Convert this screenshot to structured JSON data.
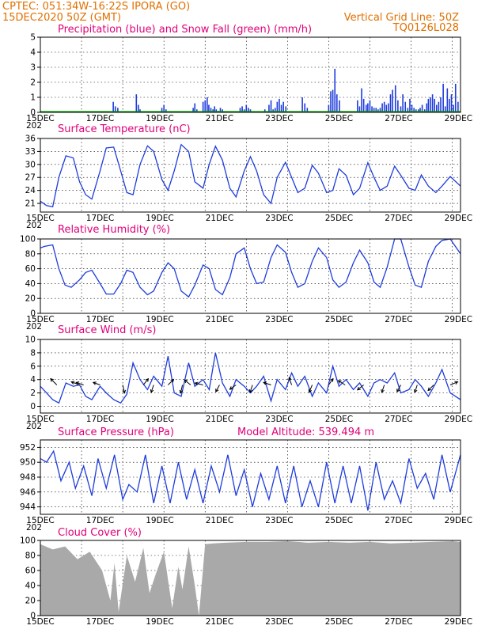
{
  "header": {
    "line1": "CPTEC:  051:34W-16:22S  IPORA (GO)",
    "line2": "15DEC2020 50Z (GMT)",
    "grid_note": "Vertical Grid Line: 50Z",
    "model_code": "TQ0126L028"
  },
  "colors": {
    "header": "#e07000",
    "titles": "#e0007a",
    "series": "#1e3cdc",
    "snow": "#00a000",
    "cloud": "#a9a9a9"
  },
  "chart_data": [
    {
      "id": "precip",
      "type": "bar",
      "title": "Precipitation (blue) and Snow Fall (green) (mm/h)",
      "ylim": [
        0,
        5
      ],
      "yticks": [
        "0",
        "1",
        "2",
        "3",
        "4",
        "5"
      ],
      "xticks": [
        "15DEC",
        "17DEC",
        "19DEC",
        "21DEC",
        "23DEC",
        "25DEC",
        "27DEC",
        "29DEC"
      ],
      "x_stub": "202",
      "series": [
        {
          "name": "Precipitation",
          "x": [
            1.77,
            1.82,
            1.88,
            2.33,
            2.38,
            2.42,
            2.95,
            3.0,
            3.05,
            3.71,
            3.75,
            3.8,
            3.95,
            4.0,
            4.05,
            4.09,
            4.14,
            4.19,
            4.23,
            4.27,
            4.32,
            4.37,
            4.42,
            4.85,
            4.9,
            4.95,
            5.0,
            5.05,
            5.1,
            5.45,
            5.55,
            5.6,
            5.65,
            5.7,
            5.75,
            5.8,
            5.85,
            5.9,
            5.96,
            6.36,
            6.42,
            6.48,
            7.0,
            7.05,
            7.1,
            7.15,
            7.2,
            7.26,
            7.7,
            7.75,
            7.8,
            7.85,
            7.91,
            7.95,
            8.0,
            8.05,
            8.1,
            8.15,
            8.2,
            8.25,
            8.3,
            8.35,
            8.4,
            8.45,
            8.5,
            8.55,
            8.62,
            8.68,
            8.75,
            8.8,
            8.86,
            8.92,
            8.97,
            9.02,
            9.07,
            9.12,
            9.18,
            9.22,
            9.27,
            9.33,
            9.38,
            9.42,
            9.47,
            9.52,
            9.57,
            9.62,
            9.67,
            9.72,
            9.78,
            9.83,
            9.88,
            9.93,
            9.98,
            10.03,
            10.08,
            10.14
          ],
          "values": [
            0.7,
            0.4,
            0.3,
            1.2,
            0.5,
            0.2,
            0.3,
            0.5,
            0.2,
            0.3,
            0.6,
            0.2,
            0.7,
            0.8,
            1.0,
            0.5,
            0.3,
            0.2,
            0.4,
            0.2,
            0.1,
            0.3,
            0.2,
            0.3,
            0.4,
            0.2,
            0.5,
            0.3,
            0.2,
            0.2,
            0.5,
            0.8,
            0.2,
            0.3,
            0.7,
            0.9,
            0.5,
            0.7,
            0.4,
            1.0,
            0.6,
            0.3,
            0.5,
            1.4,
            1.5,
            2.9,
            1.2,
            0.8,
            0.8,
            0.4,
            1.6,
            0.9,
            0.5,
            0.6,
            0.8,
            0.4,
            0.3,
            0.3,
            0.2,
            0.3,
            0.6,
            0.7,
            0.5,
            0.6,
            1.2,
            1.5,
            1.8,
            0.8,
            0.4,
            1.2,
            0.7,
            0.3,
            0.9,
            0.5,
            0.3,
            0.2,
            0.2,
            0.3,
            0.5,
            0.2,
            0.6,
            0.9,
            1.0,
            1.2,
            0.9,
            0.5,
            0.7,
            1.0,
            1.9,
            0.4,
            1.6,
            0.9,
            1.2,
            0.5,
            1.9,
            0.7
          ]
        },
        {
          "name": "Snow Fall",
          "x": [
            0.0,
            10.2
          ],
          "values": [
            0.0,
            0.0
          ]
        }
      ]
    },
    {
      "id": "temp",
      "type": "line",
      "title": "Surface Temperature (nC)",
      "ylim": [
        19,
        36
      ],
      "yticks": [
        "21",
        "24",
        "27",
        "30",
        "33",
        "36"
      ],
      "xticks": [
        "15DEC",
        "17DEC",
        "19DEC",
        "21DEC",
        "23DEC",
        "25DEC",
        "27DEC",
        "29DEC"
      ],
      "x_stub": "202",
      "series": [
        {
          "name": "",
          "x": [
            0.0,
            0.15,
            0.3,
            0.45,
            0.62,
            0.8,
            0.95,
            1.1,
            1.25,
            1.45,
            1.6,
            1.78,
            1.95,
            2.1,
            2.25,
            2.42,
            2.6,
            2.75,
            2.95,
            3.1,
            3.25,
            3.42,
            3.6,
            3.75,
            3.95,
            4.1,
            4.25,
            4.42,
            4.6,
            4.75,
            4.95,
            5.1,
            5.25,
            5.42,
            5.6,
            5.75,
            5.95,
            6.1,
            6.25,
            6.42,
            6.6,
            6.75,
            6.95,
            7.1,
            7.25,
            7.42,
            7.6,
            7.75,
            7.95,
            8.1,
            8.25,
            8.42,
            8.6,
            8.75,
            8.95,
            9.1,
            9.25,
            9.42,
            9.6,
            9.75,
            9.95,
            10.2
          ],
          "values": [
            21.5,
            20.5,
            20.2,
            27.0,
            32.0,
            31.5,
            26.0,
            23.0,
            22.0,
            28.5,
            33.8,
            34.0,
            28.5,
            23.5,
            23.0,
            30.0,
            34.3,
            33.0,
            26.5,
            24.0,
            28.5,
            34.6,
            33.0,
            26.0,
            24.5,
            30.0,
            34.2,
            31.0,
            24.5,
            22.5,
            28.5,
            31.8,
            28.5,
            23.0,
            21.0,
            27.0,
            30.5,
            27.0,
            23.5,
            24.5,
            29.8,
            28.0,
            23.5,
            24.0,
            29.0,
            27.5,
            23.0,
            24.5,
            30.4,
            27.0,
            24.0,
            25.0,
            29.6,
            27.5,
            24.5,
            24.0,
            27.6,
            25.0,
            23.5,
            25.0,
            27.2,
            25.0
          ]
        }
      ]
    },
    {
      "id": "rh",
      "type": "line",
      "title": "Relative Humidity (%)",
      "ylim": [
        0,
        100
      ],
      "yticks": [
        "0",
        "20",
        "40",
        "60",
        "80",
        "100"
      ],
      "xticks": [
        "15DEC",
        "17DEC",
        "19DEC",
        "21DEC",
        "23DEC",
        "25DEC",
        "27DEC",
        "29DEC"
      ],
      "x_stub": "202",
      "series": [
        {
          "name": "",
          "x": [
            0.0,
            0.1,
            0.3,
            0.45,
            0.6,
            0.75,
            0.95,
            1.1,
            1.25,
            1.45,
            1.6,
            1.78,
            1.95,
            2.1,
            2.25,
            2.42,
            2.6,
            2.75,
            2.95,
            3.1,
            3.25,
            3.42,
            3.6,
            3.75,
            3.95,
            4.1,
            4.25,
            4.42,
            4.6,
            4.75,
            4.95,
            5.1,
            5.25,
            5.42,
            5.6,
            5.75,
            5.95,
            6.1,
            6.25,
            6.42,
            6.6,
            6.75,
            6.95,
            7.1,
            7.25,
            7.42,
            7.6,
            7.75,
            7.95,
            8.1,
            8.25,
            8.42,
            8.6,
            8.75,
            8.95,
            9.1,
            9.25,
            9.42,
            9.6,
            9.75,
            9.95,
            10.2
          ],
          "values": [
            88.0,
            90.0,
            92.0,
            60.0,
            38.0,
            35.0,
            45.0,
            55.0,
            58.0,
            40.0,
            26.0,
            26.0,
            40.0,
            58.0,
            55.0,
            35.0,
            25.0,
            30.0,
            55.0,
            68.0,
            60.0,
            30.0,
            22.0,
            38.0,
            65.0,
            60.0,
            32.0,
            25.0,
            48.0,
            80.0,
            88.0,
            60.0,
            40.0,
            42.0,
            75.0,
            92.0,
            82.0,
            55.0,
            35.0,
            40.0,
            70.0,
            88.0,
            75.0,
            45.0,
            35.0,
            42.0,
            68.0,
            85.0,
            68.0,
            42.0,
            35.0,
            62.0,
            100.0,
            100.0,
            62.0,
            38.0,
            35.0,
            70.0,
            90.0,
            98.0,
            100.0,
            80.0
          ]
        }
      ]
    },
    {
      "id": "wind",
      "type": "line",
      "title": "Surface Wind (m/s)",
      "ylim": [
        -1,
        10
      ],
      "yticks": [
        "0",
        "2",
        "4",
        "6",
        "8",
        "10"
      ],
      "xticks": [
        "15DEC",
        "17DEC",
        "19DEC",
        "21DEC",
        "23DEC",
        "25DEC",
        "27DEC",
        "29DEC"
      ],
      "x_stub": "202",
      "series": [
        {
          "name": "",
          "x": [
            0.0,
            0.15,
            0.3,
            0.45,
            0.62,
            0.8,
            0.95,
            1.1,
            1.25,
            1.45,
            1.6,
            1.78,
            1.95,
            2.1,
            2.25,
            2.42,
            2.6,
            2.75,
            2.95,
            3.1,
            3.25,
            3.42,
            3.6,
            3.75,
            3.95,
            4.1,
            4.25,
            4.42,
            4.6,
            4.75,
            4.95,
            5.1,
            5.25,
            5.42,
            5.6,
            5.75,
            5.95,
            6.1,
            6.25,
            6.42,
            6.6,
            6.75,
            6.95,
            7.1,
            7.25,
            7.42,
            7.6,
            7.75,
            7.95,
            8.1,
            8.25,
            8.42,
            8.6,
            8.75,
            8.95,
            9.1,
            9.25,
            9.42,
            9.6,
            9.75,
            9.95,
            10.2
          ],
          "values": [
            3.0,
            2.0,
            1.0,
            0.5,
            3.5,
            3.0,
            3.2,
            1.5,
            1.0,
            3.0,
            2.0,
            1.0,
            0.5,
            1.8,
            6.5,
            4.0,
            2.5,
            4.5,
            3.0,
            7.5,
            2.0,
            1.5,
            6.5,
            3.0,
            4.0,
            2.5,
            8.0,
            3.5,
            1.5,
            4.0,
            3.0,
            2.0,
            3.0,
            4.5,
            0.8,
            4.0,
            2.5,
            5.0,
            3.0,
            4.5,
            1.5,
            3.5,
            2.0,
            6.0,
            3.0,
            4.0,
            2.5,
            3.5,
            1.5,
            3.5,
            4.0,
            3.5,
            5.0,
            2.0,
            2.5,
            4.0,
            3.0,
            1.5,
            3.5,
            5.5,
            2.0,
            1.0
          ]
        }
      ],
      "arrows": [
        {
          "x": 0.4,
          "u": -1.0,
          "v": 1.0
        },
        {
          "x": 0.95,
          "u": -1.3,
          "v": 0.5
        },
        {
          "x": 1.05,
          "u": -1.2,
          "v": 0.4
        },
        {
          "x": 1.45,
          "u": -1.1,
          "v": 0.4
        },
        {
          "x": 2.0,
          "u": 0.3,
          "v": -1.3
        },
        {
          "x": 2.5,
          "u": 0.8,
          "v": 1.0
        },
        {
          "x": 2.75,
          "u": -0.4,
          "v": -1.2
        },
        {
          "x": 3.1,
          "u": 0.9,
          "v": 0.9
        },
        {
          "x": 3.45,
          "u": -0.3,
          "v": -1.3
        },
        {
          "x": 3.65,
          "u": -1.0,
          "v": 0.8
        },
        {
          "x": 3.95,
          "u": -1.3,
          "v": 0.3
        },
        {
          "x": 4.35,
          "u": -0.6,
          "v": -1.1
        },
        {
          "x": 4.75,
          "u": -1.0,
          "v": -0.7
        },
        {
          "x": 5.15,
          "u": -0.4,
          "v": -1.2
        },
        {
          "x": 5.6,
          "u": -1.2,
          "v": 0.4
        },
        {
          "x": 6.1,
          "u": -0.4,
          "v": 1.2
        },
        {
          "x": 6.6,
          "u": -0.5,
          "v": -1.2
        },
        {
          "x": 7.0,
          "u": 0.7,
          "v": 1.0
        },
        {
          "x": 7.4,
          "u": -1.1,
          "v": 0.7
        },
        {
          "x": 7.85,
          "u": -1.0,
          "v": -0.8
        },
        {
          "x": 8.35,
          "u": -0.4,
          "v": -1.2
        },
        {
          "x": 8.75,
          "u": -0.6,
          "v": -1.1
        },
        {
          "x": 9.15,
          "u": -0.4,
          "v": -1.2
        },
        {
          "x": 9.55,
          "u": -0.9,
          "v": -0.9
        },
        {
          "x": 9.95,
          "u": 1.2,
          "v": 0.5
        }
      ]
    },
    {
      "id": "pres",
      "type": "line",
      "title": "Surface Pressure (hPa)",
      "annotation": "Model Altitude: 539.494 m",
      "ylim": [
        943,
        953
      ],
      "yticks": [
        "944",
        "946",
        "948",
        "950",
        "952"
      ],
      "xticks": [
        "15DEC",
        "17DEC",
        "19DEC",
        "21DEC",
        "23DEC",
        "25DEC",
        "27DEC",
        "29DEC"
      ],
      "x_stub": "202",
      "series": [
        {
          "name": "",
          "x": [
            0.0,
            0.15,
            0.32,
            0.5,
            0.7,
            0.85,
            1.05,
            1.25,
            1.4,
            1.6,
            1.8,
            2.0,
            2.15,
            2.35,
            2.55,
            2.75,
            2.95,
            3.15,
            3.35,
            3.55,
            3.75,
            3.95,
            4.15,
            4.35,
            4.55,
            4.75,
            4.95,
            5.15,
            5.35,
            5.55,
            5.75,
            5.95,
            6.15,
            6.35,
            6.55,
            6.75,
            6.95,
            7.15,
            7.35,
            7.55,
            7.75,
            7.95,
            8.15,
            8.35,
            8.55,
            8.75,
            8.95,
            9.15,
            9.35,
            9.55,
            9.75,
            9.95,
            10.2
          ],
          "values": [
            950.5,
            950.0,
            951.5,
            947.5,
            950.0,
            946.5,
            949.5,
            945.5,
            950.5,
            946.5,
            951.0,
            945.0,
            947.0,
            946.0,
            951.0,
            944.5,
            949.5,
            944.5,
            950.0,
            945.0,
            949.0,
            944.5,
            949.5,
            946.0,
            951.0,
            945.5,
            949.0,
            944.0,
            948.5,
            945.0,
            949.5,
            944.5,
            949.5,
            944.0,
            947.5,
            944.0,
            950.0,
            944.5,
            949.5,
            944.5,
            949.5,
            943.5,
            950.0,
            945.0,
            947.5,
            944.5,
            950.5,
            946.5,
            948.5,
            945.0,
            951.0,
            946.0,
            951.0
          ]
        }
      ]
    },
    {
      "id": "cloud",
      "type": "area",
      "title": "Cloud Cover (%)",
      "ylim": [
        0,
        100
      ],
      "yticks": [
        "0",
        "20",
        "40",
        "60",
        "80",
        "100"
      ],
      "xticks": [
        "15DEC",
        "17DEC",
        "19DEC",
        "21DEC",
        "23DEC",
        "25DEC",
        "27DEC",
        "29DEC"
      ],
      "series": [
        {
          "name": "",
          "x": [
            0.0,
            0.3,
            0.6,
            0.9,
            1.2,
            1.5,
            1.7,
            1.8,
            1.9,
            2.1,
            2.3,
            2.5,
            2.65,
            2.8,
            3.0,
            3.2,
            3.35,
            3.45,
            3.6,
            3.75,
            3.85,
            4.0,
            4.2,
            4.5,
            5.0,
            5.5,
            6.0,
            6.5,
            7.0,
            7.5,
            8.0,
            8.5,
            9.0,
            9.5,
            10.0,
            10.2
          ],
          "values": [
            95.0,
            88.0,
            92.0,
            75.0,
            85.0,
            60.0,
            20.0,
            70.0,
            5.0,
            80.0,
            45.0,
            90.0,
            30.0,
            55.0,
            85.0,
            10.0,
            65.0,
            35.0,
            92.0,
            40.0,
            0.0,
            95.0,
            96.0,
            97.0,
            98.0,
            98.0,
            99.0,
            97.0,
            98.0,
            97.0,
            98.0,
            96.0,
            97.0,
            98.0,
            99.0,
            98.0
          ]
        }
      ]
    }
  ]
}
